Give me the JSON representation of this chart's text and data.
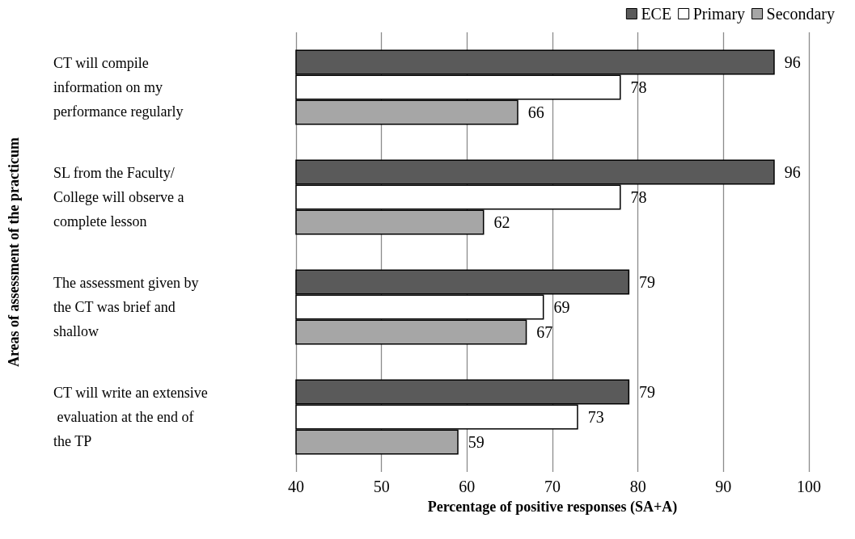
{
  "chart_data": {
    "type": "bar",
    "orientation": "horizontal",
    "xlabel": "Percentage of positive responses (SA+A)",
    "ylabel": "Areas of assessment of the practicum",
    "categories": [
      "CT will compile information on my performance regularly",
      "SL from the Faculty/College will observe a complete lesson",
      "The assessment given by the CT was brief and shallow",
      "CT will write an extensive evaluation at the end of the TP"
    ],
    "series": [
      {
        "name": "ECE",
        "color": "#5a5a5a",
        "values": [
          96,
          96,
          79,
          79
        ]
      },
      {
        "name": "Primary",
        "color": "#ffffff",
        "values": [
          78,
          78,
          69,
          73
        ]
      },
      {
        "name": "Secondary",
        "color": "#a6a6a6",
        "values": [
          66,
          62,
          67,
          59
        ]
      }
    ],
    "xlim": [
      40,
      100
    ],
    "xticks": [
      40,
      50,
      60,
      70,
      80,
      90,
      100
    ],
    "grid": "x",
    "legend": "top right",
    "data_labels": true
  }
}
